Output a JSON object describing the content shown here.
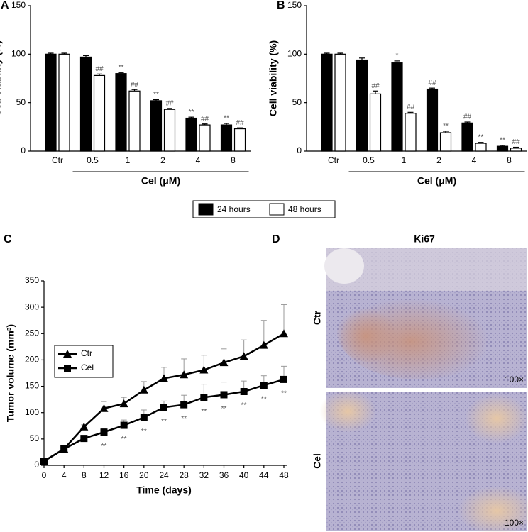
{
  "chart_data": [
    {
      "type": "bar",
      "panel": "A",
      "ylabel": "Cell viability (%)",
      "xlabel": "Cel (μM)",
      "categories": [
        "Ctr",
        "0.5",
        "1",
        "2",
        "4",
        "8"
      ],
      "ylim": [
        0,
        150
      ],
      "yticks": [
        0,
        50,
        100,
        150
      ],
      "series": [
        {
          "name": "24 hours",
          "color": "#000000",
          "values": [
            100,
            97,
            80,
            52,
            34,
            27
          ],
          "errors": [
            1,
            1.5,
            1,
            1,
            1,
            1.5
          ],
          "annotations": [
            null,
            null,
            "**",
            "**",
            "**",
            "**"
          ]
        },
        {
          "name": "48 hours",
          "color": "#ffffff",
          "values": [
            100,
            78,
            62,
            43,
            27,
            23
          ],
          "errors": [
            1,
            1.5,
            1.5,
            1,
            1,
            1
          ],
          "annotations": [
            null,
            "##",
            "##",
            "##",
            "##",
            "##"
          ]
        }
      ]
    },
    {
      "type": "bar",
      "panel": "B",
      "ylabel": "Cell viability (%)",
      "xlabel": "Cel (μM)",
      "categories": [
        "Ctr",
        "0.5",
        "1",
        "2",
        "4",
        "8"
      ],
      "ylim": [
        0,
        150
      ],
      "yticks": [
        0,
        50,
        100,
        150
      ],
      "series": [
        {
          "color": "#000000",
          "values": [
            100,
            94,
            91,
            64,
            29,
            5
          ],
          "errors": [
            1,
            2,
            2,
            1,
            1,
            1
          ],
          "annotations": [
            null,
            null,
            "*",
            "##",
            "##",
            "**"
          ]
        },
        {
          "color": "#ffffff",
          "values": [
            100,
            59,
            39,
            19,
            8,
            3
          ],
          "errors": [
            1,
            3,
            1,
            1.5,
            1,
            1
          ],
          "annotations": [
            null,
            "##",
            "##",
            "**",
            "**",
            "##"
          ]
        }
      ]
    },
    {
      "type": "line",
      "panel": "C",
      "ylabel": "Tumor volume (mm³)",
      "xlabel": "Time (days)",
      "x": [
        0,
        4,
        8,
        12,
        16,
        20,
        24,
        28,
        32,
        36,
        40,
        44,
        48
      ],
      "xlim": [
        0,
        48
      ],
      "xticks": [
        0,
        4,
        8,
        12,
        16,
        20,
        24,
        28,
        32,
        36,
        40,
        44,
        48
      ],
      "ylim": [
        0,
        350
      ],
      "yticks": [
        0,
        50,
        100,
        150,
        200,
        250,
        300,
        350
      ],
      "series": [
        {
          "name": "Ctr",
          "color": "#000000",
          "marker": "triangle",
          "values": [
            8,
            31,
            73,
            108,
            117,
            143,
            165,
            172,
            181,
            195,
            207,
            228,
            250
          ],
          "errors": [
            0,
            2,
            4,
            13,
            12,
            16,
            21,
            30,
            28,
            26,
            31,
            47,
            55
          ]
        },
        {
          "name": "Cel",
          "color": "#000000",
          "marker": "square",
          "values": [
            8,
            31,
            51,
            63,
            76,
            91,
            110,
            115,
            129,
            134,
            140,
            152,
            163
          ],
          "errors": [
            0,
            2,
            3,
            7,
            10,
            14,
            12,
            18,
            25,
            24,
            20,
            18,
            25
          ],
          "annotations": [
            null,
            null,
            null,
            "**",
            "**",
            "**",
            "**",
            "**",
            "**",
            "**",
            "**",
            "**",
            "**"
          ]
        }
      ]
    }
  ],
  "panel_d": {
    "label": "D",
    "title": "Ki67",
    "rows": [
      {
        "label": "Ctr",
        "scale": "100×"
      },
      {
        "label": "Cel",
        "scale": "100×"
      }
    ]
  }
}
